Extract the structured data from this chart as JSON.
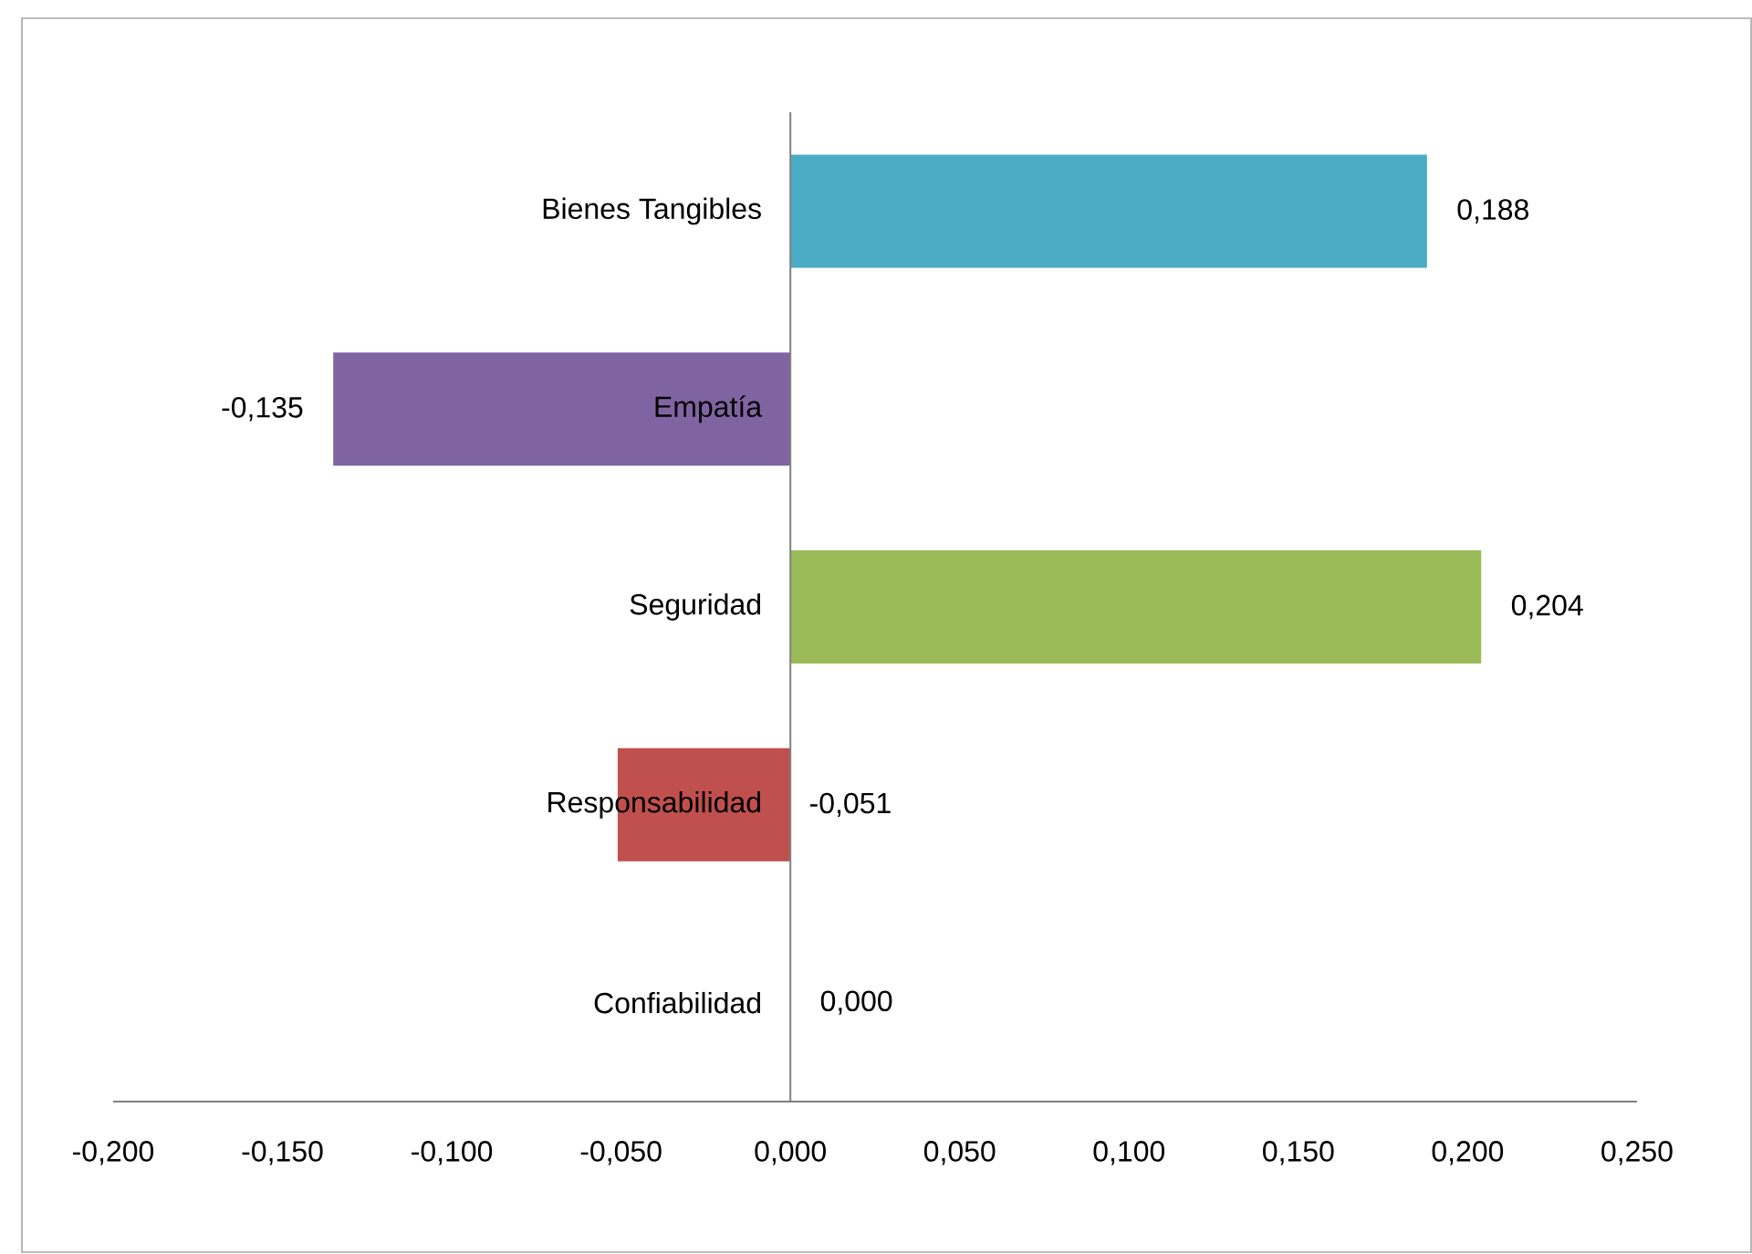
{
  "chart_data": {
    "type": "bar",
    "orientation": "horizontal",
    "categories": [
      "Bienes Tangibles",
      "Empatía",
      "Seguridad",
      "Responsabilidad",
      "Confiabilidad"
    ],
    "values": [
      0.188,
      -0.135,
      0.204,
      -0.051,
      0.0
    ],
    "colors": [
      "#4bacc6",
      "#8064a2",
      "#9bbb59",
      "#c0504d",
      "#f79646"
    ],
    "value_labels": [
      "0,188",
      "-0,135",
      "0,204",
      "-0,051",
      "0,000"
    ],
    "xlim": [
      -0.2,
      0.25
    ],
    "xticks": [
      {
        "value": -0.2,
        "label": "-0,200"
      },
      {
        "value": -0.15,
        "label": "-0,150"
      },
      {
        "value": -0.1,
        "label": "-0,100"
      },
      {
        "value": -0.05,
        "label": "-0,050"
      },
      {
        "value": 0.0,
        "label": "0,000"
      },
      {
        "value": 0.05,
        "label": "0,050"
      },
      {
        "value": 0.1,
        "label": "0,100"
      },
      {
        "value": 0.15,
        "label": "0,150"
      },
      {
        "value": 0.2,
        "label": "0,200"
      },
      {
        "value": 0.25,
        "label": "0,250"
      }
    ]
  }
}
